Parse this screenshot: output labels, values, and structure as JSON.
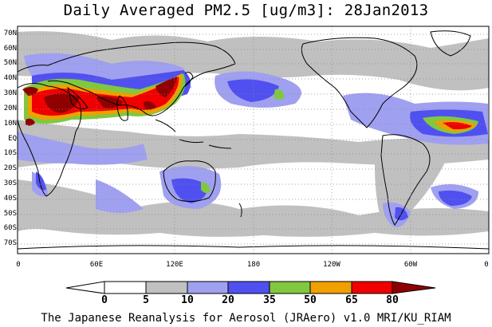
{
  "title": "Daily Averaged PM2.5 [ug/m3]: 28Jan2013",
  "credit": "The Japanese Reanalysis for Aerosol (JRAero) v1.0 MRI/KU_RIAM",
  "lat_labels": [
    "70N",
    "60N",
    "50N",
    "40N",
    "30N",
    "20N",
    "10N",
    "EQ",
    "10S",
    "20S",
    "30S",
    "40S",
    "50S",
    "60S",
    "70S"
  ],
  "lon_labels": [
    "0",
    "60E",
    "120E",
    "180",
    "120W",
    "60W",
    "0"
  ],
  "colorbar": {
    "levels": [
      "0",
      "5",
      "10",
      "20",
      "35",
      "50",
      "65",
      "80"
    ],
    "colors": [
      "#ffffff",
      "#c0c0c0",
      "#a0a0f0",
      "#5050f0",
      "#80c840",
      "#f0a000",
      "#f00000",
      "#900000"
    ],
    "arrow_low_color": "#ffffff",
    "arrow_high_color": "#900000"
  },
  "colors": {
    "land_outline": "#000000",
    "grid": "#888888",
    "frame": "#000000"
  }
}
